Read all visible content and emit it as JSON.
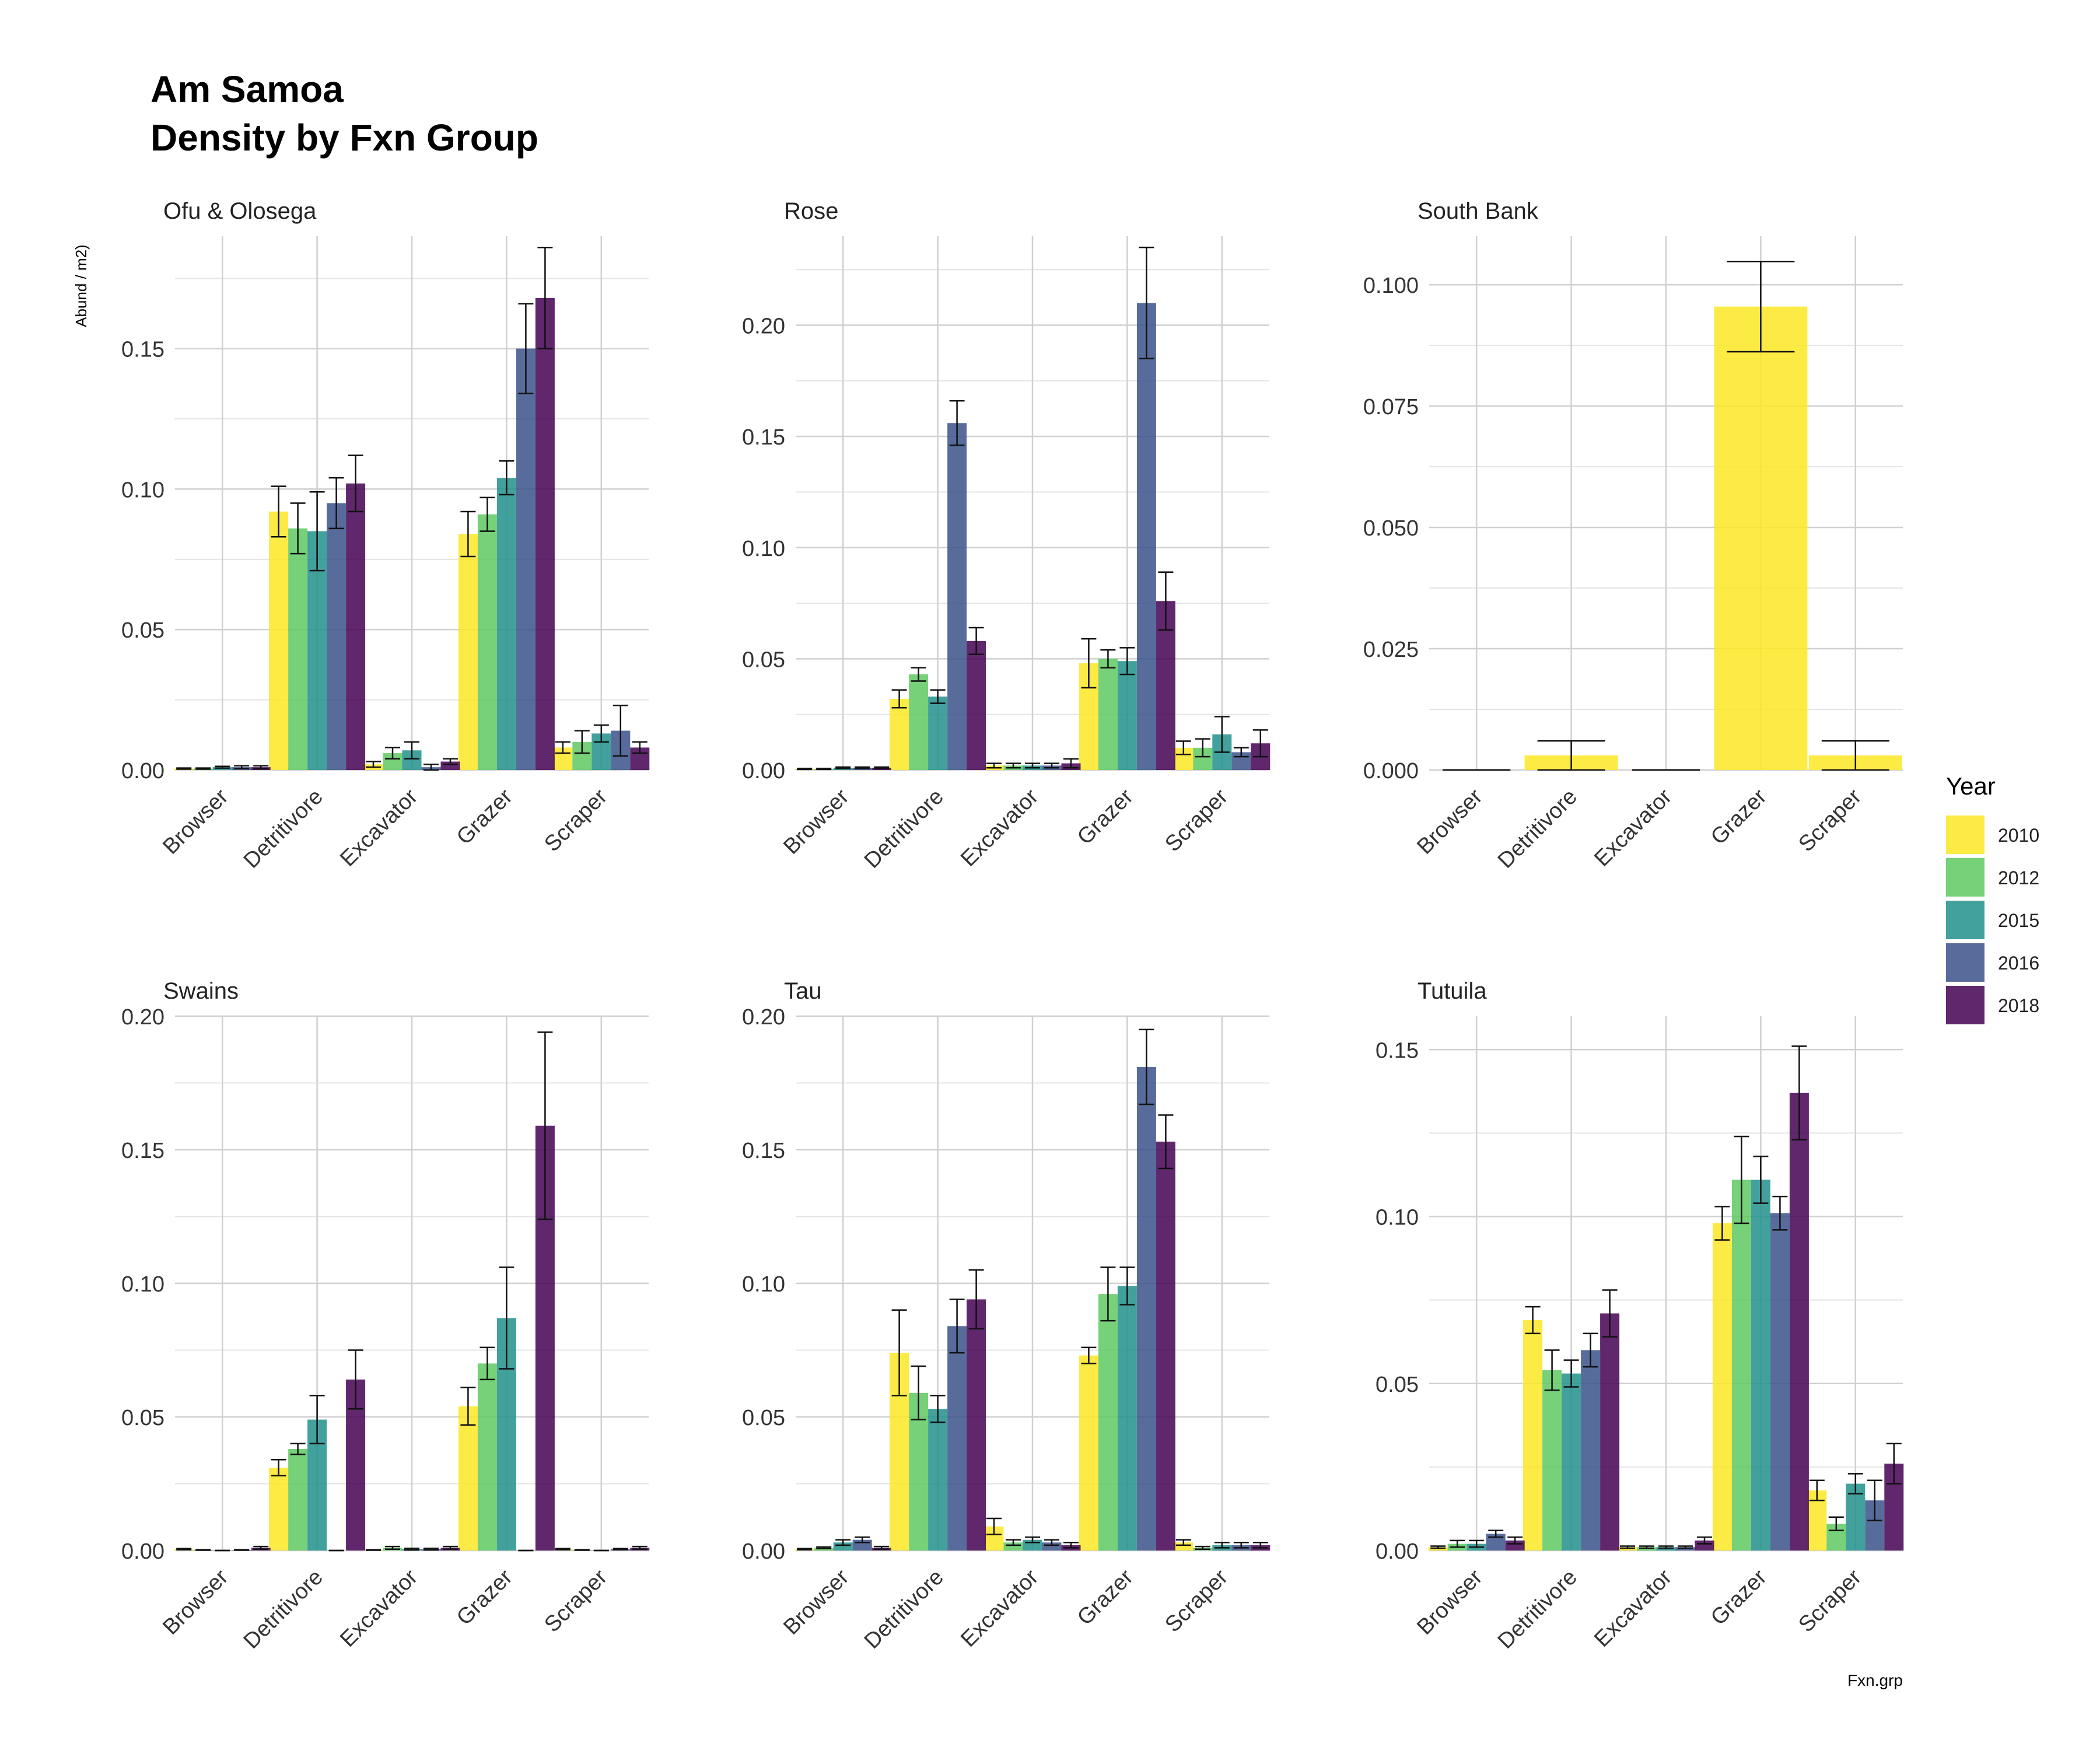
{
  "title_line1": "Am Samoa",
  "title_line2": "Density by Fxn Group",
  "y_axis_label": "Abund / m2)",
  "x_axis_label": "Fxn.grp",
  "legend_title": "Year",
  "chart_data": {
    "type": "bar",
    "grouped": true,
    "error_bars": true,
    "grid": true,
    "legend_position": "right",
    "categories": [
      "Browser",
      "Detritivore",
      "Excavator",
      "Grazer",
      "Scraper"
    ],
    "years": [
      "2010",
      "2012",
      "2015",
      "2016",
      "2018"
    ],
    "colors": {
      "2010": "#FDE725",
      "2012": "#5EC962",
      "2015": "#21918C",
      "2016": "#3B528B",
      "2018": "#440154"
    },
    "panels": [
      {
        "title": "Ofu & Olosega",
        "ylim": [
          0,
          0.19
        ],
        "yticks": [
          0.0,
          0.05,
          0.1,
          0.15
        ],
        "tick_labels": [
          "0.00",
          "0.05",
          "0.10",
          "0.15"
        ],
        "series": [
          {
            "name": "2010",
            "values": [
              0.0005,
              0.092,
              0.002,
              0.084,
              0.008
            ],
            "err": [
              0.0002,
              0.009,
              0.001,
              0.008,
              0.002
            ]
          },
          {
            "name": "2012",
            "values": [
              0.0005,
              0.086,
              0.006,
              0.091,
              0.01
            ],
            "err": [
              0.0002,
              0.009,
              0.002,
              0.006,
              0.004
            ]
          },
          {
            "name": "2015",
            "values": [
              0.001,
              0.085,
              0.007,
              0.104,
              0.013
            ],
            "err": [
              0.0003,
              0.014,
              0.003,
              0.006,
              0.003
            ]
          },
          {
            "name": "2016",
            "values": [
              0.001,
              0.095,
              0.001,
              0.15,
              0.014
            ],
            "err": [
              0.0005,
              0.009,
              0.001,
              0.016,
              0.009
            ]
          },
          {
            "name": "2018",
            "values": [
              0.001,
              0.102,
              0.003,
              0.168,
              0.008
            ],
            "err": [
              0.0005,
              0.01,
              0.001,
              0.018,
              0.002
            ]
          }
        ]
      },
      {
        "title": "Rose",
        "ylim": [
          0,
          0.24
        ],
        "yticks": [
          0.0,
          0.05,
          0.1,
          0.15,
          0.2
        ],
        "tick_labels": [
          "0.00",
          "0.05",
          "0.10",
          "0.15",
          "0.20"
        ],
        "series": [
          {
            "name": "2010",
            "values": [
              0.0005,
              0.032,
              0.002,
              0.048,
              0.01
            ],
            "err": [
              0.0002,
              0.004,
              0.001,
              0.011,
              0.003
            ]
          },
          {
            "name": "2012",
            "values": [
              0.0005,
              0.043,
              0.002,
              0.05,
              0.01
            ],
            "err": [
              0.0002,
              0.003,
              0.001,
              0.004,
              0.004
            ]
          },
          {
            "name": "2015",
            "values": [
              0.001,
              0.033,
              0.002,
              0.049,
              0.016
            ],
            "err": [
              0.0003,
              0.003,
              0.001,
              0.006,
              0.008
            ]
          },
          {
            "name": "2016",
            "values": [
              0.001,
              0.156,
              0.002,
              0.21,
              0.008
            ],
            "err": [
              0.0003,
              0.01,
              0.001,
              0.025,
              0.002
            ]
          },
          {
            "name": "2018",
            "values": [
              0.001,
              0.058,
              0.003,
              0.076,
              0.012
            ],
            "err": [
              0.0003,
              0.006,
              0.002,
              0.013,
              0.006
            ]
          }
        ]
      },
      {
        "title": "South Bank",
        "ylim": [
          0,
          0.11
        ],
        "yticks": [
          0.0,
          0.025,
          0.05,
          0.075,
          0.1
        ],
        "tick_labels": [
          "0.000",
          "0.025",
          "0.050",
          "0.075",
          "0.100"
        ],
        "series": [
          {
            "name": "2010",
            "values": [
              0.0,
              0.003,
              0.0,
              0.0955,
              0.003
            ],
            "err": [
              0.0,
              0.003,
              0.0,
              0.0093,
              0.003
            ]
          }
        ]
      },
      {
        "title": "Swains",
        "ylim": [
          0,
          0.2
        ],
        "yticks": [
          0.0,
          0.05,
          0.1,
          0.15,
          0.2
        ],
        "tick_labels": [
          "0.00",
          "0.05",
          "0.10",
          "0.15",
          "0.20"
        ],
        "series": [
          {
            "name": "2010",
            "values": [
              0.0005,
              0.031,
              0.0002,
              0.054,
              0.0005
            ],
            "err": [
              0.0002,
              0.003,
              0.0001,
              0.007,
              0.0002
            ]
          },
          {
            "name": "2012",
            "values": [
              0.0002,
              0.038,
              0.001,
              0.07,
              0.0002
            ],
            "err": [
              0.0001,
              0.002,
              0.0005,
              0.006,
              0.0001
            ]
          },
          {
            "name": "2015",
            "values": [
              0.0,
              0.049,
              0.0005,
              0.087,
              0.0
            ],
            "err": [
              0.0,
              0.009,
              0.0003,
              0.019,
              0.0
            ]
          },
          {
            "name": "2016",
            "values": [
              0.0002,
              0.0,
              0.0005,
              0.0,
              0.0005
            ],
            "err": [
              0.0001,
              0.0,
              0.0003,
              0.0,
              0.0002
            ]
          },
          {
            "name": "2018",
            "values": [
              0.001,
              0.064,
              0.001,
              0.159,
              0.001
            ],
            "err": [
              0.0005,
              0.011,
              0.0005,
              0.035,
              0.0005
            ]
          }
        ]
      },
      {
        "title": "Tau",
        "ylim": [
          0,
          0.2
        ],
        "yticks": [
          0.0,
          0.05,
          0.1,
          0.15,
          0.2
        ],
        "tick_labels": [
          "0.00",
          "0.05",
          "0.10",
          "0.15",
          "0.20"
        ],
        "series": [
          {
            "name": "2010",
            "values": [
              0.0005,
              0.074,
              0.009,
              0.073,
              0.003
            ],
            "err": [
              0.0002,
              0.016,
              0.003,
              0.003,
              0.001
            ]
          },
          {
            "name": "2012",
            "values": [
              0.001,
              0.059,
              0.003,
              0.096,
              0.001
            ],
            "err": [
              0.0003,
              0.01,
              0.001,
              0.01,
              0.0005
            ]
          },
          {
            "name": "2015",
            "values": [
              0.003,
              0.053,
              0.004,
              0.099,
              0.002
            ],
            "err": [
              0.001,
              0.005,
              0.001,
              0.007,
              0.001
            ]
          },
          {
            "name": "2016",
            "values": [
              0.004,
              0.084,
              0.003,
              0.181,
              0.002
            ],
            "err": [
              0.001,
              0.01,
              0.001,
              0.014,
              0.001
            ]
          },
          {
            "name": "2018",
            "values": [
              0.001,
              0.094,
              0.002,
              0.153,
              0.002
            ],
            "err": [
              0.0005,
              0.011,
              0.001,
              0.01,
              0.001
            ]
          }
        ]
      },
      {
        "title": "Tutuila",
        "ylim": [
          0,
          0.16
        ],
        "yticks": [
          0.0,
          0.05,
          0.1,
          0.15
        ],
        "tick_labels": [
          "0.00",
          "0.05",
          "0.10",
          "0.15"
        ],
        "series": [
          {
            "name": "2010",
            "values": [
              0.001,
              0.069,
              0.001,
              0.098,
              0.018
            ],
            "err": [
              0.0003,
              0.004,
              0.0003,
              0.005,
              0.003
            ]
          },
          {
            "name": "2012",
            "values": [
              0.002,
              0.054,
              0.001,
              0.111,
              0.008
            ],
            "err": [
              0.001,
              0.006,
              0.0003,
              0.013,
              0.002
            ]
          },
          {
            "name": "2015",
            "values": [
              0.002,
              0.053,
              0.001,
              0.111,
              0.02
            ],
            "err": [
              0.001,
              0.004,
              0.0003,
              0.007,
              0.003
            ]
          },
          {
            "name": "2016",
            "values": [
              0.005,
              0.06,
              0.001,
              0.101,
              0.015
            ],
            "err": [
              0.001,
              0.005,
              0.0003,
              0.005,
              0.006
            ]
          },
          {
            "name": "2018",
            "values": [
              0.003,
              0.071,
              0.003,
              0.137,
              0.026
            ],
            "err": [
              0.001,
              0.007,
              0.001,
              0.014,
              0.006
            ]
          }
        ]
      }
    ]
  }
}
